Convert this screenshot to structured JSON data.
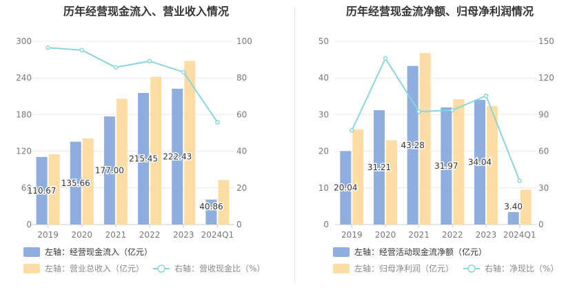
{
  "chart_data": [
    {
      "type": "bar",
      "title": "历年经营现金流入、营业收入情况",
      "categories": [
        "2019",
        "2020",
        "2021",
        "2022",
        "2023",
        "2024Q1"
      ],
      "y_left": {
        "min": 0,
        "max": 300,
        "ticks": [
          "0",
          "60",
          "120",
          "180",
          "240",
          "300"
        ]
      },
      "y_right": {
        "min": 0,
        "max": 100,
        "ticks": [
          "0",
          "20",
          "40",
          "60",
          "80",
          "100"
        ]
      },
      "series": [
        {
          "name": "左轴：经营现金流入（亿元）",
          "kind": "bar",
          "axis": "left",
          "color": "#8eaedd",
          "values": [
            110.67,
            135.66,
            177.0,
            215.45,
            222.43,
            40.86
          ],
          "labels": [
            "110.67",
            "135.66",
            "177.00",
            "215.45",
            "222.43",
            "40.86"
          ]
        },
        {
          "name": "左轴：营业总收入（亿元）",
          "kind": "bar",
          "axis": "left",
          "color": "#fddda4",
          "values": [
            115,
            141,
            206,
            242,
            268,
            73
          ]
        },
        {
          "name": "右轴：营收现金比（%）",
          "kind": "line",
          "axis": "right",
          "color": "#8ad4dc",
          "values": [
            96.5,
            95.2,
            85.8,
            89.2,
            83.2,
            55.8
          ]
        }
      ],
      "legend_position": "bottom",
      "grid": true
    },
    {
      "type": "bar",
      "title": "历年经营现金流净额、归母净利润情况",
      "categories": [
        "2019",
        "2020",
        "2021",
        "2022",
        "2023",
        "2024Q1"
      ],
      "y_left": {
        "min": 0,
        "max": 50,
        "ticks": [
          "0",
          "10",
          "20",
          "30",
          "40",
          "50"
        ]
      },
      "y_right": {
        "min": 0,
        "max": 150,
        "ticks": [
          "0",
          "30",
          "60",
          "90",
          "120",
          "150"
        ]
      },
      "series": [
        {
          "name": "左轴：经营活动现金流净额（亿元）",
          "kind": "bar",
          "axis": "left",
          "color": "#8eaedd",
          "values": [
            20.04,
            31.21,
            43.28,
            31.97,
            34.04,
            3.4
          ],
          "labels": [
            "20.04",
            "31.21",
            "43.28",
            "31.97",
            "34.04",
            "3.40"
          ]
        },
        {
          "name": "左轴：归母净利润（亿元）",
          "kind": "bar",
          "axis": "left",
          "color": "#fddda4",
          "values": [
            26.0,
            23.0,
            46.8,
            34.2,
            32.3,
            9.5
          ]
        },
        {
          "name": "右轴：净现比（%）",
          "kind": "line",
          "axis": "right",
          "color": "#8ad4dc",
          "values": [
            77.1,
            136.0,
            92.5,
            93.6,
            105.4,
            35.8
          ]
        }
      ],
      "legend_position": "bottom",
      "grid": true
    }
  ]
}
